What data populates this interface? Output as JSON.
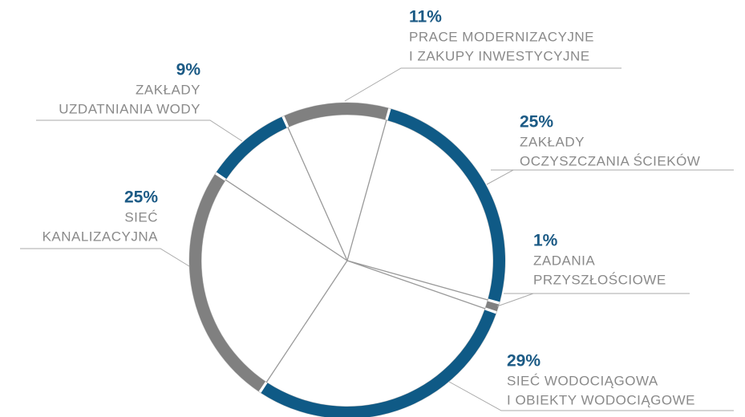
{
  "chart_data": {
    "type": "pie",
    "categories": [
      [
        "PRACE MODERNIZACYJNE",
        "I ZAKUPY INWESTYCYJNE"
      ],
      [
        "ZAKŁADY",
        "OCZYSZCZANIA ŚCIEKÓW"
      ],
      [
        "ZADANIA",
        "PRZYSZŁOŚCIOWE"
      ],
      [
        "SIEĆ WODOCIĄGOWA",
        "I OBIEKTY WODOCIĄGOWE"
      ],
      [
        "SIEĆ",
        "KANALIZACYJNA"
      ],
      [
        "ZAKŁADY",
        "UZDATNIANIA WODY"
      ]
    ],
    "values": [
      11,
      25,
      1,
      29,
      25,
      9
    ],
    "value_labels": [
      "11%",
      "25%",
      "1%",
      "29%",
      "25%",
      "9%"
    ],
    "colors": [
      "#808080",
      "#0f5a86",
      "#808080",
      "#0f5a86",
      "#808080",
      "#0f5a86"
    ]
  }
}
